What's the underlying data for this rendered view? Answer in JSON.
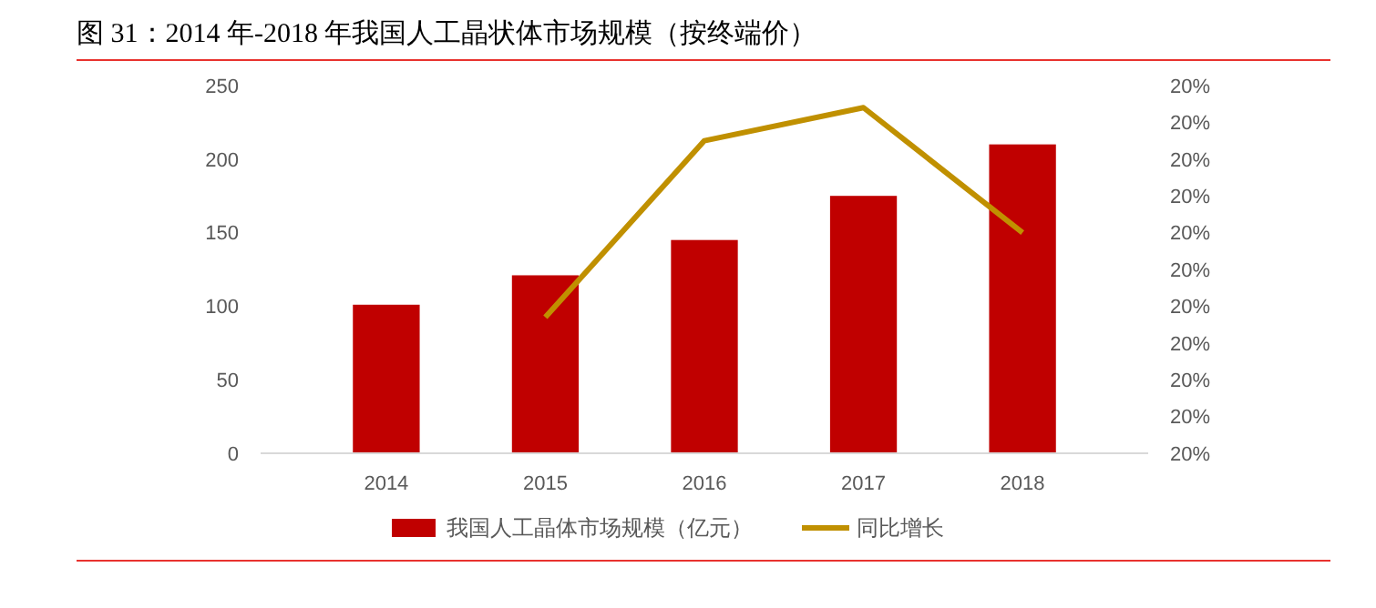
{
  "chart_data": {
    "type": "bar",
    "title": "图 31：2014 年-2018 年我国人工晶状体市场规模（按终端价）",
    "categories": [
      "2014",
      "2015",
      "2016",
      "2017",
      "2018"
    ],
    "series": [
      {
        "name": "我国人工晶体市场规模（亿元）",
        "color": "#c00000",
        "values": [
          101,
          121,
          145,
          175,
          210
        ]
      },
      {
        "name": "同比增长",
        "type": "line",
        "axis": "y2",
        "color": "#c09000",
        "values": [
          null,
          19.87,
          20.35,
          20.44,
          20.1
        ]
      }
    ],
    "ylim": [
      0,
      250
    ],
    "yticks": [
      0,
      50,
      100,
      150,
      200,
      250
    ],
    "y2lim": [
      19.5,
      20.5
    ],
    "y2ticks": [
      {
        "value": 19.5,
        "label": "20%"
      },
      {
        "value": 19.6,
        "label": "20%"
      },
      {
        "value": 19.7,
        "label": "20%"
      },
      {
        "value": 19.8,
        "label": "20%"
      },
      {
        "value": 19.9,
        "label": "20%"
      },
      {
        "value": 20.0,
        "label": "20%"
      },
      {
        "value": 20.1,
        "label": "20%"
      },
      {
        "value": 20.2,
        "label": "20%"
      },
      {
        "value": 20.3,
        "label": "20%"
      },
      {
        "value": 20.4,
        "label": "20%"
      },
      {
        "value": 20.5,
        "label": "20%"
      }
    ],
    "legend": "bottom",
    "grid": false
  }
}
